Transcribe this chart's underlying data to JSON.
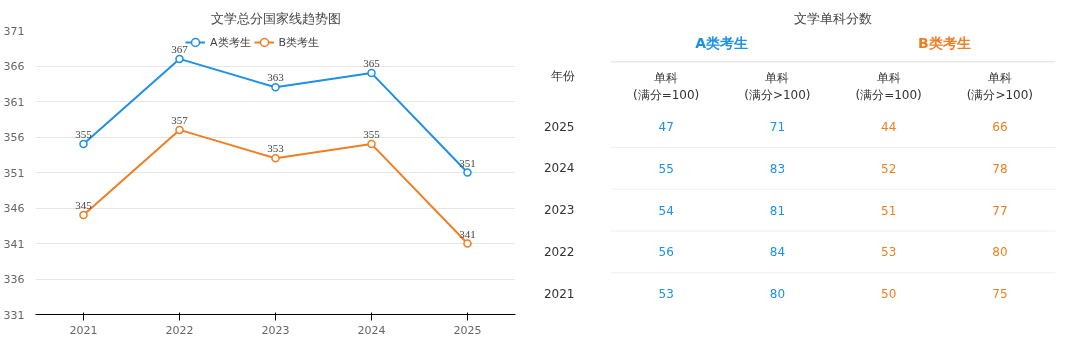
{
  "chart_data": [
    {
      "type": "line",
      "title": "文学总分国家线趋势图",
      "categories": [
        "2021",
        "2022",
        "2023",
        "2024",
        "2025"
      ],
      "ylim": [
        331,
        371
      ],
      "yticks": [
        331,
        336,
        341,
        346,
        351,
        356,
        361,
        366,
        371
      ],
      "grid": "y",
      "legend": "top",
      "marker": "circle",
      "line_style": "solid",
      "data_labels": true,
      "series": [
        {
          "name": "A类考生",
          "color": "#1e90e6",
          "values": [
            355,
            367,
            363,
            365,
            351
          ]
        },
        {
          "name": "B类考生",
          "color": "#f07e22",
          "values": [
            345,
            357,
            353,
            355,
            341
          ]
        }
      ]
    },
    {
      "type": "heatmap",
      "title": "文学单科分数",
      "ylabel": "年份",
      "annotations": [
        "A类考生",
        "B类考生"
      ],
      "data_labels": true,
      "categories": [
        "单科\n(满分=100)",
        "单科\n(满分>100)",
        "单科\n(满分=100)",
        "单科\n(满分>100)"
      ],
      "colors": [
        "#1e90e6",
        "#1e90e6",
        "#f07e22",
        "#f07e22"
      ],
      "y_categories": [
        "2025",
        "2024",
        "2023",
        "2022",
        "2021"
      ],
      "cells": [
        [
          47,
          71,
          44,
          66
        ],
        [
          55,
          83,
          52,
          78
        ],
        [
          54,
          81,
          51,
          77
        ],
        [
          56,
          84,
          53,
          80
        ],
        [
          53,
          80,
          50,
          75
        ]
      ]
    }
  ]
}
